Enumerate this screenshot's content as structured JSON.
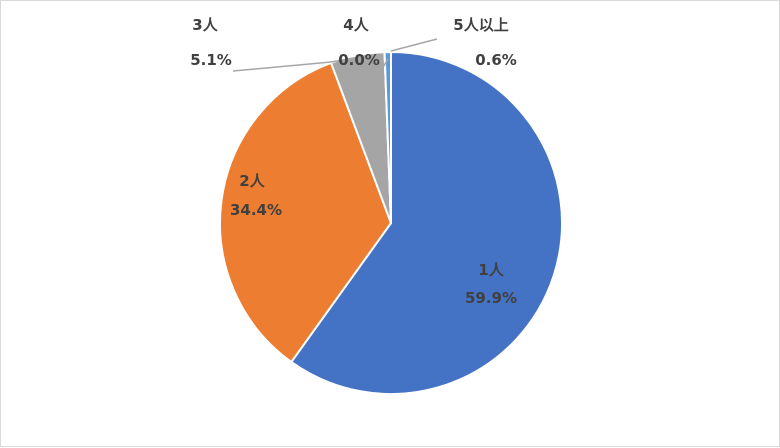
{
  "chart_data": {
    "type": "pie",
    "title": "",
    "slices": [
      {
        "label": "1人",
        "value": 59.9,
        "value_text": "59.9%",
        "color": "#4472C4"
      },
      {
        "label": "2人",
        "value": 34.4,
        "value_text": "34.4%",
        "color": "#ED7D31"
      },
      {
        "label": "3人",
        "value": 5.1,
        "value_text": "5.1%",
        "color": "#A5A5A5"
      },
      {
        "label": "4人",
        "value": 0.0,
        "value_text": "0.0%",
        "color": "#FFC000"
      },
      {
        "label": "5人以上",
        "value": 0.6,
        "value_text": "0.6%",
        "color": "#5B9BD5"
      }
    ],
    "legend": "none",
    "start_angle": "12 o'clock, clockwise",
    "leader_line_color": "#A6A6A6"
  }
}
